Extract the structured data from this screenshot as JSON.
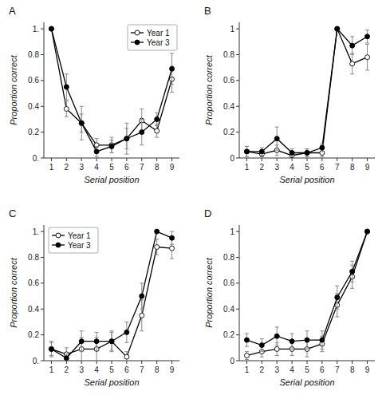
{
  "chart_data": [
    {
      "type": "line",
      "title": "A",
      "xlabel": "Serial position",
      "ylabel": "Proportion correct",
      "x": [
        1,
        2,
        3,
        4,
        5,
        6,
        7,
        8,
        9
      ],
      "xlim": [
        0.5,
        9.5
      ],
      "xticks": [
        1,
        2,
        3,
        4,
        5,
        6,
        7,
        8,
        9
      ],
      "ylim": [
        0,
        1.05
      ],
      "yticks": [
        {
          "value": 0.0,
          "label": "0."
        },
        0.2,
        0.4,
        0.6,
        0.8,
        {
          "value": 1.0,
          "label": "1."
        }
      ],
      "grid": false,
      "legend": "upper-right",
      "series": [
        {
          "name": "Year 1",
          "color": "black",
          "marker": "open-circle",
          "line_style": "solid",
          "values": [
            1.0,
            0.38,
            0.27,
            0.1,
            0.1,
            0.15,
            0.29,
            0.21,
            0.61
          ],
          "errors": [
            0.0,
            0.06,
            0.07,
            0.05,
            0.06,
            0.08,
            0.09,
            0.05,
            0.1
          ]
        },
        {
          "name": "Year 3",
          "color": "black",
          "marker": "circle",
          "line_style": "solid",
          "values": [
            1.0,
            0.55,
            0.27,
            0.05,
            0.09,
            0.15,
            0.2,
            0.3,
            0.69
          ],
          "errors": [
            0.0,
            0.1,
            0.13,
            0.04,
            0.05,
            0.12,
            0.1,
            0.05,
            0.12
          ]
        }
      ]
    },
    {
      "type": "line",
      "title": "B",
      "xlabel": "Serial position",
      "ylabel": "Proportion correct",
      "x": [
        1,
        2,
        3,
        4,
        5,
        6,
        7,
        8,
        9
      ],
      "xlim": [
        0.5,
        9.5
      ],
      "xticks": [
        1,
        2,
        3,
        4,
        5,
        6,
        7,
        8,
        9
      ],
      "ylim": [
        0,
        1.05
      ],
      "yticks": [
        0,
        0.2,
        0.4,
        0.6,
        0.8,
        1
      ],
      "grid": false,
      "legend": false,
      "series": [
        {
          "name": "Year 1",
          "color": "black",
          "marker": "open-circle",
          "line_style": "solid",
          "values": [
            0.05,
            0.03,
            0.06,
            0.02,
            0.04,
            0.04,
            1.0,
            0.73,
            0.78
          ],
          "errors": [
            0.04,
            0.02,
            0.04,
            0.02,
            0.03,
            0.03,
            0.0,
            0.08,
            0.1
          ]
        },
        {
          "name": "Year 3",
          "color": "black",
          "marker": "circle",
          "line_style": "solid",
          "values": [
            0.05,
            0.05,
            0.15,
            0.04,
            0.04,
            0.08,
            1.0,
            0.87,
            0.94
          ],
          "errors": [
            0.04,
            0.03,
            0.09,
            0.03,
            0.03,
            0.03,
            0.0,
            0.07,
            0.05
          ]
        }
      ]
    },
    {
      "type": "line",
      "title": "C",
      "xlabel": "Serial position",
      "ylabel": "Proportion correct",
      "x": [
        1,
        2,
        3,
        4,
        5,
        6,
        7,
        8,
        9
      ],
      "xlim": [
        0.5,
        9.5
      ],
      "xticks": [
        1,
        2,
        3,
        4,
        5,
        6,
        7,
        8,
        9
      ],
      "ylim": [
        0,
        1.05
      ],
      "yticks": [
        {
          "value": 0.0,
          "label": "0."
        },
        0.2,
        0.4,
        0.6,
        0.8,
        {
          "value": 1.0,
          "label": "1."
        }
      ],
      "grid": false,
      "legend": "upper-left",
      "series": [
        {
          "name": "Year 1",
          "color": "black",
          "marker": "open-circle",
          "line_style": "solid",
          "values": [
            0.09,
            0.05,
            0.09,
            0.09,
            0.15,
            0.03,
            0.35,
            0.88,
            0.87
          ],
          "errors": [
            0.06,
            0.05,
            0.09,
            0.09,
            0.08,
            0.04,
            0.12,
            0.06,
            0.08
          ]
        },
        {
          "name": "Year 3",
          "color": "black",
          "marker": "circle",
          "line_style": "solid",
          "values": [
            0.09,
            0.02,
            0.15,
            0.15,
            0.15,
            0.22,
            0.5,
            1.0,
            0.95
          ],
          "errors": [
            0.05,
            0.03,
            0.08,
            0.07,
            0.07,
            0.08,
            0.1,
            0.0,
            0.05
          ]
        }
      ]
    },
    {
      "type": "line",
      "title": "D",
      "xlabel": "Serial position",
      "ylabel": "Proportion correct",
      "x": [
        1,
        2,
        3,
        4,
        5,
        6,
        7,
        8,
        9
      ],
      "xlim": [
        0.5,
        9.5
      ],
      "xticks": [
        1,
        2,
        3,
        4,
        5,
        6,
        7,
        8,
        9
      ],
      "ylim": [
        0,
        1.05
      ],
      "yticks": [
        0,
        0.2,
        0.4,
        0.6,
        0.8,
        1
      ],
      "grid": false,
      "legend": false,
      "series": [
        {
          "name": "Year 1",
          "color": "black",
          "marker": "open-circle",
          "line_style": "solid",
          "values": [
            0.04,
            0.07,
            0.09,
            0.09,
            0.09,
            0.13,
            0.43,
            0.65,
            1.0
          ],
          "errors": [
            0.03,
            0.04,
            0.05,
            0.05,
            0.06,
            0.06,
            0.09,
            0.09,
            0.0
          ]
        },
        {
          "name": "Year 3",
          "color": "black",
          "marker": "circle",
          "line_style": "solid",
          "values": [
            0.16,
            0.12,
            0.19,
            0.15,
            0.16,
            0.16,
            0.49,
            0.69,
            1.0
          ],
          "errors": [
            0.05,
            0.05,
            0.07,
            0.06,
            0.07,
            0.07,
            0.09,
            0.08,
            0.0
          ]
        }
      ]
    }
  ]
}
